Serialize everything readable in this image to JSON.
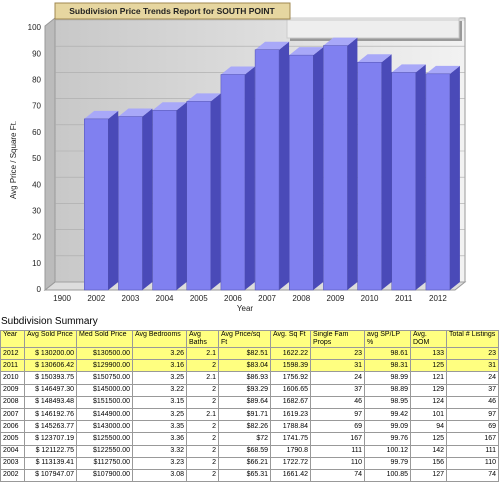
{
  "chart_data": {
    "type": "bar",
    "title": "Subdivision Price Trends Report for SOUTH POINT",
    "x_label": "Year",
    "y_label": "Avg Price / Square Ft.",
    "categories": [
      "1900",
      "2002",
      "2003",
      "2004",
      "2005",
      "2006",
      "2007",
      "2008",
      "2009",
      "2010",
      "2011",
      "2012"
    ],
    "values": [
      null,
      65.31,
      66.21,
      68.59,
      72,
      82.26,
      91.71,
      89.64,
      93.29,
      86.93,
      83.04,
      82.51
    ],
    "color": "#8080f0",
    "ylim": [
      0,
      100
    ],
    "yticks": [
      0,
      10,
      20,
      30,
      40,
      50,
      60,
      70,
      80,
      90,
      100
    ],
    "grid": true
  },
  "table": {
    "title": "Subdivision Summary",
    "header": [
      "Year",
      "Avg Sold Price",
      "Med Sold Price",
      "Avg Bedrooms",
      "Avg Baths",
      "Avg Price/sq Ft",
      "Avg. Sq Ft",
      "Single Fam Props",
      "avg SP/LP %",
      "Avg. DOM",
      "Total # Listings"
    ],
    "rows": [
      [
        "2012",
        "$ 130200.00",
        "$130500.00",
        "3.26",
        "2.1",
        "$82.51",
        "1622.22",
        "23",
        "98.61",
        "133",
        "23"
      ],
      [
        "2011",
        "$ 130606.42",
        "$129900.00",
        "3.16",
        "2",
        "$83.04",
        "1598.39",
        "31",
        "98.31",
        "125",
        "31"
      ],
      [
        "2010",
        "$ 150393.75",
        "$150750.00",
        "3.25",
        "2.1",
        "$86.93",
        "1756.92",
        "24",
        "98.99",
        "121",
        "24"
      ],
      [
        "2009",
        "$ 146497.30",
        "$145000.00",
        "3.22",
        "2",
        "$93.29",
        "1606.65",
        "37",
        "98.89",
        "129",
        "37"
      ],
      [
        "2008",
        "$ 148493.48",
        "$151500.00",
        "3.15",
        "2",
        "$89.64",
        "1682.67",
        "46",
        "98.95",
        "124",
        "46"
      ],
      [
        "2007",
        "$ 146192.76",
        "$144900.00",
        "3.25",
        "2.1",
        "$91.71",
        "1619.23",
        "97",
        "99.42",
        "101",
        "97"
      ],
      [
        "2006",
        "$ 145263.77",
        "$143000.00",
        "3.35",
        "2",
        "$82.26",
        "1788.84",
        "69",
        "99.09",
        "94",
        "69"
      ],
      [
        "2005",
        "$ 123707.19",
        "$125500.00",
        "3.36",
        "2",
        "$72",
        "1741.75",
        "167",
        "99.76",
        "125",
        "167"
      ],
      [
        "2004",
        "$ 121122.75",
        "$122550.00",
        "3.32",
        "2",
        "$68.59",
        "1790.8",
        "111",
        "100.12",
        "142",
        "111"
      ],
      [
        "2003",
        "$ 113139.41",
        "$112750.00",
        "3.23",
        "2",
        "$66.21",
        "1722.72",
        "110",
        "99.79",
        "156",
        "110"
      ],
      [
        "2002",
        "$ 107947.07",
        "$107900.00",
        "3.08",
        "2",
        "$65.31",
        "1661.42",
        "74",
        "100.85",
        "127",
        "74"
      ]
    ]
  }
}
